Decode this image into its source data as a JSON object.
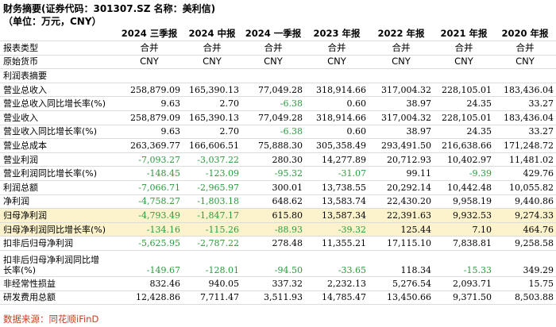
{
  "title": "财务摘要(证券代码：301307.SZ 名称：美利信)",
  "unit": "（单位：万元，CNY）",
  "columns": [
    "2024 三季报",
    "2024 中报",
    "2024 一季报",
    "2023 年报",
    "2022 年报",
    "2021 年报",
    "2020 年报"
  ],
  "meta_rows": [
    {
      "label": "报表类型",
      "values": [
        "合并",
        "合并",
        "合并",
        "合并",
        "合并",
        "合并",
        "合并"
      ]
    },
    {
      "label": "原始货币",
      "values": [
        "CNY",
        "CNY",
        "CNY",
        "CNY",
        "CNY",
        "CNY",
        "CNY"
      ]
    }
  ],
  "section_label": "利润表摘要",
  "rows": [
    {
      "label": "营业总收入",
      "values": [
        "258,879.09",
        "165,390.13",
        "77,049.28",
        "318,914.66",
        "317,004.32",
        "228,105.01",
        "183,436.04"
      ],
      "highlight": false
    },
    {
      "label": "营业总收入同比增长率(%)",
      "values": [
        "9.63",
        "2.70",
        "-6.38",
        "0.60",
        "38.97",
        "24.35",
        "33.27"
      ],
      "highlight": false
    },
    {
      "label": "营业收入",
      "values": [
        "258,879.09",
        "165,390.13",
        "77,049.28",
        "318,914.66",
        "317,004.32",
        "228,105.01",
        "183,436.04"
      ],
      "highlight": false
    },
    {
      "label": "营业收入同比增长率(%)",
      "values": [
        "9.63",
        "2.70",
        "-6.38",
        "0.60",
        "38.97",
        "24.35",
        "33.27"
      ],
      "highlight": false
    },
    {
      "label": "营业总成本",
      "values": [
        "263,369.77",
        "166,606.51",
        "75,888.30",
        "305,358.49",
        "293,491.50",
        "216,638.66",
        "171,248.72"
      ],
      "highlight": false
    },
    {
      "label": "营业利润",
      "values": [
        "-7,093.27",
        "-3,037.22",
        "280.30",
        "14,277.89",
        "20,712.93",
        "10,402.97",
        "11,481.02"
      ],
      "highlight": false
    },
    {
      "label": "营业利润同比增长率(%)",
      "values": [
        "-148.45",
        "-123.09",
        "-95.32",
        "-31.07",
        "99.11",
        "-9.39",
        "429.76"
      ],
      "highlight": false
    },
    {
      "label": "利润总额",
      "values": [
        "-7,066.71",
        "-2,965.97",
        "300.01",
        "13,738.55",
        "20,292.14",
        "10,442.48",
        "10,055.82"
      ],
      "highlight": false
    },
    {
      "label": "净利润",
      "values": [
        "-4,758.27",
        "-1,803.18",
        "648.62",
        "13,583.74",
        "22,430.20",
        "9,958.19",
        "9,440.86"
      ],
      "highlight": false
    },
    {
      "label": "归母净利润",
      "values": [
        "-4,793.49",
        "-1,847.17",
        "615.80",
        "13,587.34",
        "22,391.63",
        "9,932.53",
        "9,274.33"
      ],
      "highlight": true
    },
    {
      "label": "归母净利润同比增长率(%)",
      "values": [
        "-134.16",
        "-115.26",
        "-88.93",
        "-39.32",
        "125.44",
        "7.10",
        "464.76"
      ],
      "highlight": true
    },
    {
      "label": "扣非后归母净利润",
      "values": [
        "-5,625.95",
        "-2,787.22",
        "278.48",
        "11,355.21",
        "17,115.10",
        "7,838.81",
        "9,258.58"
      ],
      "highlight": false
    }
  ],
  "tall_row": {
    "label_line1": "扣非后归母净利润同比增",
    "label_line2": "长率(%)",
    "values": [
      "-149.67",
      "-128.01",
      "-94.50",
      "-33.65",
      "118.34",
      "-15.33",
      "349.29"
    ]
  },
  "tail_rows": [
    {
      "label": "非经常性损益",
      "values": [
        "832.46",
        "940.05",
        "337.32",
        "2,232.13",
        "5,276.54",
        "2,093.71",
        "15.75"
      ]
    },
    {
      "label": "研发费用总额",
      "values": [
        "12,428.86",
        "7,711.47",
        "3,511.93",
        "14,785.47",
        "13,450.66",
        "9,371.50",
        "8,503.88"
      ]
    }
  ],
  "source": "数据来源：同花顺iFinD",
  "colors": {
    "negative": "#2a9b3c",
    "highlight": "#fcf3cc",
    "source": "#d03b1f"
  }
}
